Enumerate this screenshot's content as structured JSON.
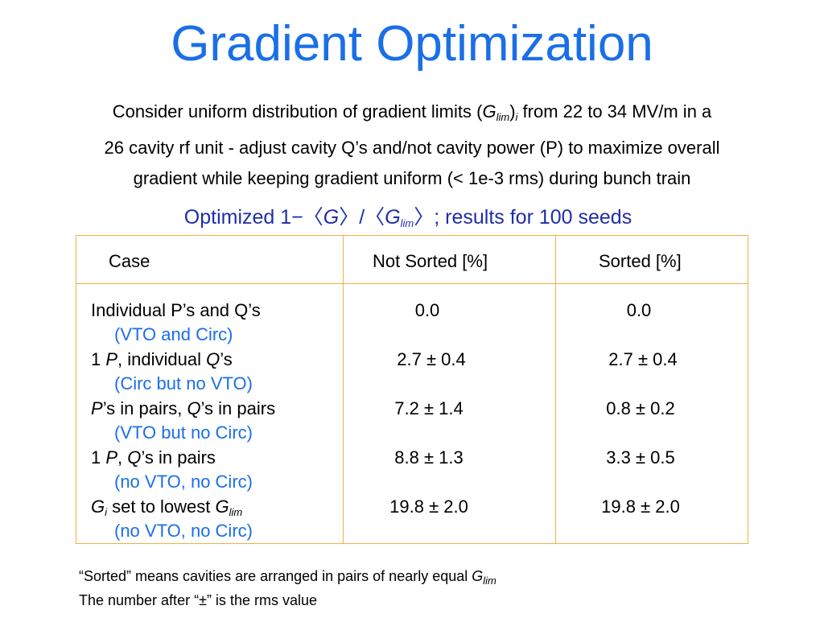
{
  "title": "Gradient Optimization",
  "intro": {
    "line1_pre": "Consider uniform distribution of gradient limits (",
    "line1_g": "G",
    "line1_sub": "lim",
    "line1_close": ")",
    "line1_i": "i",
    "line1_post": " from 22 to 34 MV/m in a",
    "line2": "26 cavity rf unit - adjust cavity Q’s and/not cavity power (P) to maximize overall",
    "line3": "gradient while keeping gradient uniform (< 1e-3 rms) during bunch train"
  },
  "subtitle": {
    "pre": "Optimized 1−〈",
    "g1": "G",
    "mid": "〉/〈",
    "g2": "G",
    "sub": "lim",
    "post": "〉; results for 100 seeds"
  },
  "table": {
    "headers": [
      "Case",
      "Not Sorted  [%]",
      "Sorted  [%]"
    ],
    "rows": [
      {
        "case": "Individual P’s and Q’s",
        "note": "(VTO and Circ)",
        "not_sorted": "0.0",
        "sorted": "0.0"
      },
      {
        "case": "1 P, individual Q’s",
        "note": "(Circ but no VTO)",
        "not_sorted": "2.7 ± 0.4",
        "sorted": "2.7 ± 0.4"
      },
      {
        "case": "P’s in pairs, Q’s in pairs",
        "note": "(VTO but no Circ)",
        "not_sorted": "7.2 ± 1.4",
        "sorted": "0.8 ± 0.2"
      },
      {
        "case": "1 P, Q’s in pairs",
        "note": "(no VTO, no Circ)",
        "not_sorted": "8.8 ± 1.3",
        "sorted": "3.3 ± 0.5"
      },
      {
        "case": "Gi set to lowest Glim",
        "note": "(no VTO, no Circ)",
        "not_sorted": "19.8 ± 2.0",
        "sorted": "19.8 ± 2.0"
      }
    ]
  },
  "footnotes": {
    "sorted_pre": "“Sorted” means cavities are arranged in pairs of nearly equal ",
    "sorted_g": "G",
    "sorted_sub": "lim",
    "rms": "The number after “±” is the rms value"
  },
  "colors": {
    "title": "#1a6fe6",
    "subtitle": "#1f2ea8",
    "note": "#1a6fe6",
    "table_border": "#f0b04a"
  }
}
